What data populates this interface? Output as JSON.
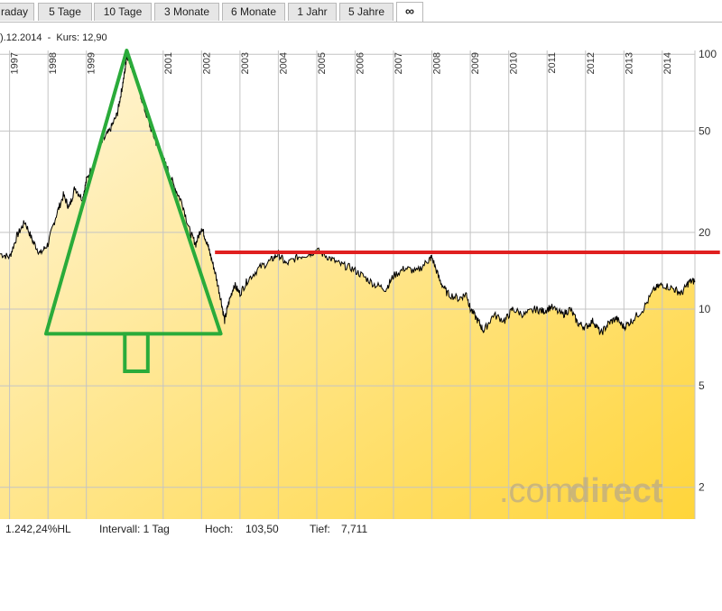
{
  "tabs": [
    {
      "label": "raday",
      "active": false
    },
    {
      "label": "5 Tage",
      "active": false
    },
    {
      "label": "10 Tage",
      "active": false
    },
    {
      "label": "3 Monate",
      "active": false
    },
    {
      "label": "6 Monate",
      "active": false
    },
    {
      "label": "1 Jahr",
      "active": false
    },
    {
      "label": "5 Jahre",
      "active": false
    },
    {
      "label": "∞",
      "active": true
    }
  ],
  "subtitle": ").12.2014  -  Kurs: 12,90",
  "footer": {
    "performance": "1.242,24%HL",
    "interval": "Intervall: 1 Tag",
    "high_label": "Hoch:",
    "high_value": "103,50",
    "low_label": "Tief:",
    "low_value": "7,711"
  },
  "watermark": {
    "prefix": ".com",
    "suffix": "direct"
  },
  "colors": {
    "price_line": "#000000",
    "fill_top": "#fff6d9",
    "fill_bottom": "#ffd53a",
    "triangle": "#2aab3a",
    "resistance": "#e02020",
    "grid": "#c4c4c4"
  },
  "chart_data": {
    "type": "line",
    "yscale": "log",
    "ylim": [
      1.5,
      103.5
    ],
    "ytick_labels": [
      "100",
      "50",
      "20",
      "10",
      "5",
      "2"
    ],
    "yticks": [
      100,
      50,
      20,
      10,
      5,
      2
    ],
    "x_tick_labels": [
      "1997",
      "1998",
      "1999",
      "2001",
      "2002",
      "2003",
      "2004",
      "2005",
      "2006",
      "2007",
      "2008",
      "2009",
      "2010",
      "2011",
      "2012",
      "2013",
      "2014"
    ],
    "x_ticks": [
      1997.0,
      1998.0,
      1999.0,
      2001.0,
      2002.0,
      2003.0,
      2004.0,
      2005.0,
      2006.0,
      2007.0,
      2008.0,
      2009.0,
      2010.0,
      2011.0,
      2012.0,
      2013.0,
      2014.0
    ],
    "xlim": [
      1996.75,
      2014.85
    ],
    "series": [
      {
        "points": [
          [
            1996.75,
            16.5
          ],
          [
            1997.0,
            16.0
          ],
          [
            1997.2,
            19.5
          ],
          [
            1997.4,
            22.0
          ],
          [
            1997.6,
            18.5
          ],
          [
            1997.8,
            16.5
          ],
          [
            1998.0,
            18.0
          ],
          [
            1998.2,
            23.0
          ],
          [
            1998.4,
            28.0
          ],
          [
            1998.55,
            25.0
          ],
          [
            1998.7,
            30.0
          ],
          [
            1998.9,
            27.0
          ],
          [
            1999.0,
            32.0
          ],
          [
            1999.2,
            38.0
          ],
          [
            1999.4,
            45.0
          ],
          [
            1999.6,
            50.0
          ],
          [
            1999.8,
            58.0
          ],
          [
            1999.9,
            70.0
          ],
          [
            2000.0,
            85.0
          ],
          [
            2000.05,
            100.0
          ],
          [
            2000.15,
            92.0
          ],
          [
            2000.3,
            80.0
          ],
          [
            2000.5,
            62.0
          ],
          [
            2000.7,
            50.0
          ],
          [
            2000.9,
            42.0
          ],
          [
            2001.1,
            36.0
          ],
          [
            2001.3,
            30.0
          ],
          [
            2001.5,
            26.0
          ],
          [
            2001.7,
            20.0
          ],
          [
            2001.85,
            18.0
          ],
          [
            2002.0,
            21.0
          ],
          [
            2002.1,
            19.0
          ],
          [
            2002.2,
            17.0
          ],
          [
            2002.35,
            14.0
          ],
          [
            2002.5,
            11.0
          ],
          [
            2002.6,
            9.0
          ],
          [
            2002.7,
            10.5
          ],
          [
            2002.85,
            12.5
          ],
          [
            2003.0,
            11.5
          ],
          [
            2003.2,
            13.0
          ],
          [
            2003.5,
            14.5
          ],
          [
            2003.8,
            15.5
          ],
          [
            2004.0,
            16.5
          ],
          [
            2004.2,
            15.0
          ],
          [
            2004.5,
            16.0
          ],
          [
            2004.8,
            16.5
          ],
          [
            2005.0,
            17.0
          ],
          [
            2005.3,
            16.0
          ],
          [
            2005.6,
            15.0
          ],
          [
            2005.9,
            14.5
          ],
          [
            2006.2,
            13.5
          ],
          [
            2006.5,
            12.5
          ],
          [
            2006.8,
            12.0
          ],
          [
            2007.0,
            13.5
          ],
          [
            2007.3,
            14.5
          ],
          [
            2007.6,
            14.0
          ],
          [
            2007.9,
            15.5
          ],
          [
            2008.0,
            16.0
          ],
          [
            2008.2,
            13.0
          ],
          [
            2008.4,
            11.5
          ],
          [
            2008.7,
            11.0
          ],
          [
            2008.9,
            11.5
          ],
          [
            2009.0,
            10.0
          ],
          [
            2009.2,
            9.0
          ],
          [
            2009.35,
            8.2
          ],
          [
            2009.6,
            9.5
          ],
          [
            2009.9,
            9.0
          ],
          [
            2010.1,
            10.0
          ],
          [
            2010.4,
            9.5
          ],
          [
            2010.7,
            10.0
          ],
          [
            2010.9,
            9.8
          ],
          [
            2011.1,
            10.2
          ],
          [
            2011.4,
            9.5
          ],
          [
            2011.6,
            10.0
          ],
          [
            2011.8,
            8.8
          ],
          [
            2012.0,
            8.5
          ],
          [
            2012.2,
            9.0
          ],
          [
            2012.4,
            8.0
          ],
          [
            2012.6,
            8.8
          ],
          [
            2012.8,
            9.2
          ],
          [
            2013.0,
            8.5
          ],
          [
            2013.2,
            9.0
          ],
          [
            2013.5,
            10.0
          ],
          [
            2013.8,
            12.0
          ],
          [
            2014.0,
            12.5
          ],
          [
            2014.3,
            12.0
          ],
          [
            2014.5,
            11.5
          ],
          [
            2014.7,
            12.8
          ],
          [
            2014.85,
            12.9
          ]
        ]
      }
    ],
    "annotations": {
      "triangle": [
        [
          1997.95,
          8.0
        ],
        [
          2000.05,
          103.5
        ],
        [
          2002.5,
          8.0
        ]
      ],
      "trunk": [
        [
          2000.0,
          8.0
        ],
        [
          2000.6,
          5.7
        ]
      ],
      "resistance_line": {
        "y": 16.7,
        "x_start": 2002.35,
        "x_end": 2015.5
      }
    }
  }
}
